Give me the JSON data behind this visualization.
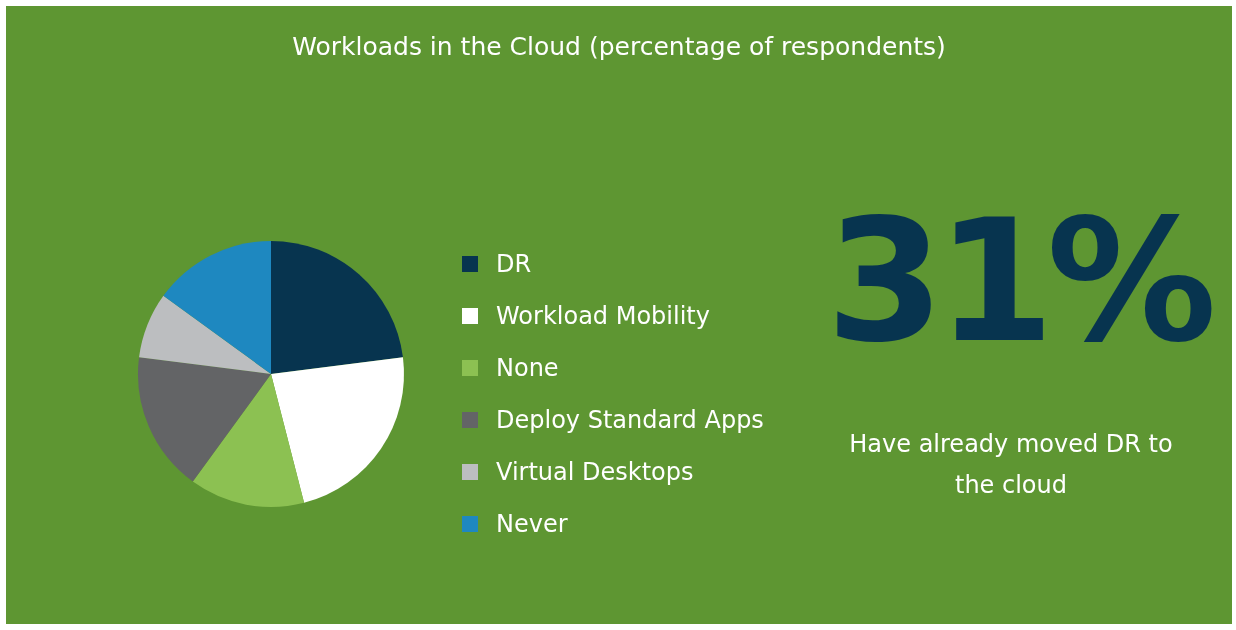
{
  "chart_data": {
    "type": "pie",
    "title": "Workloads in the Cloud (percentage of respondents)",
    "categories": [
      "DR",
      "Workload Mobility",
      "None",
      "Deploy Standard Apps",
      "Virtual Desktops",
      "Never"
    ],
    "values": [
      23,
      23,
      14,
      17,
      8,
      15
    ],
    "colors": [
      "#07344f",
      "#ffffff",
      "#8cc152",
      "#636466",
      "#bcbec0",
      "#1e88c0"
    ],
    "legend": "right",
    "annotations": [
      "31%",
      "Have already moved DR to the cloud"
    ]
  }
}
